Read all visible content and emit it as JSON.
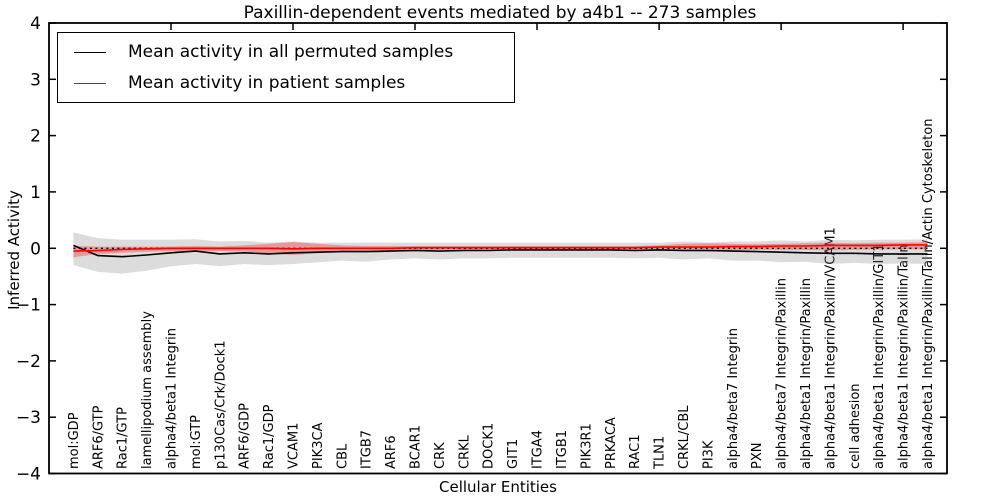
{
  "chart_data": {
    "type": "line",
    "title": "Paxillin-dependent events mediated by a4b1 -- 273 samples",
    "xlabel": "Cellular Entities",
    "ylabel": "Inferred Activity",
    "xlim": [
      0,
      36.8
    ],
    "ylim": [
      -4,
      4
    ],
    "grid": false,
    "legend_position": "upper left",
    "yticks": [
      {
        "value": 4,
        "label": "4"
      },
      {
        "value": 3,
        "label": "3"
      },
      {
        "value": 2,
        "label": "2"
      },
      {
        "value": 1,
        "label": "1"
      },
      {
        "value": 0,
        "label": "0"
      },
      {
        "value": -1,
        "label": "−1"
      },
      {
        "value": -2,
        "label": "−2"
      },
      {
        "value": -3,
        "label": "−3"
      },
      {
        "value": -4,
        "label": "−4"
      }
    ],
    "xtick_marks": [
      5,
      10,
      15,
      20,
      25,
      30,
      35
    ],
    "categories": [
      "mol:GDP",
      "ARF6/GTP",
      "Rac1/GTP",
      "lamellipodium assembly",
      "alpha4/beta1 Integrin",
      "mol:GTP",
      "p130Cas/Crk/Dock1",
      "ARF6/GDP",
      "Rac1/GDP",
      "VCAM1",
      "PIK3CA",
      "CBL",
      "ITGB7",
      "ARF6",
      "BCAR1",
      "CRK",
      "CRKL",
      "DOCK1",
      "GIT1",
      "ITGA4",
      "ITGB1",
      "PIK3R1",
      "PRKACA",
      "RAC1",
      "TLN1",
      "CRKL/CBL",
      "PI3K",
      "alpha4/beta7 Integrin",
      "PXN",
      "alpha4/beta7 Integrin/Paxillin",
      "alpha4/beta1 Integrin/Paxillin",
      "alpha4/beta1 Integrin/Paxillin/VCAM1",
      "cell adhesion",
      "alpha4/beta1 Integrin/Paxillin/GIT1",
      "alpha4/beta1 Integrin/Paxillin/Talin",
      "alpha4/beta1 Integrin/Paxillin/Talin/Actin Cytoskeleton"
    ],
    "zero_line": {
      "value": 0,
      "style": "dotted",
      "color": "#000000"
    },
    "series": [
      {
        "key": "permuted",
        "name": "Mean activity in all permuted samples",
        "color": "#000000",
        "values": [
          0.05,
          -0.13,
          -0.15,
          -0.12,
          -0.08,
          -0.05,
          -0.1,
          -0.08,
          -0.1,
          -0.08,
          -0.07,
          -0.06,
          -0.06,
          -0.05,
          -0.04,
          -0.05,
          -0.04,
          -0.04,
          -0.03,
          -0.03,
          -0.03,
          -0.03,
          -0.03,
          -0.04,
          -0.03,
          -0.04,
          -0.04,
          -0.05,
          -0.06,
          -0.07,
          -0.08,
          -0.09,
          -0.09,
          -0.1,
          -0.1,
          -0.1
        ],
        "band": {
          "color": "#808080",
          "opacity": 0.28,
          "upper": [
            0.28,
            0.18,
            0.15,
            0.15,
            0.15,
            0.16,
            0.12,
            0.13,
            0.1,
            0.12,
            0.1,
            0.1,
            0.1,
            0.1,
            0.1,
            0.1,
            0.1,
            0.1,
            0.1,
            0.1,
            0.1,
            0.1,
            0.1,
            0.1,
            0.1,
            0.12,
            0.1,
            0.12,
            0.12,
            0.14,
            0.12,
            0.15,
            0.14,
            0.15,
            0.15,
            0.16
          ],
          "lower": [
            -0.3,
            -0.42,
            -0.45,
            -0.4,
            -0.32,
            -0.28,
            -0.32,
            -0.28,
            -0.3,
            -0.28,
            -0.25,
            -0.22,
            -0.24,
            -0.2,
            -0.18,
            -0.2,
            -0.18,
            -0.18,
            -0.17,
            -0.17,
            -0.17,
            -0.17,
            -0.17,
            -0.18,
            -0.17,
            -0.2,
            -0.18,
            -0.22,
            -0.22,
            -0.25,
            -0.24,
            -0.28,
            -0.26,
            -0.28,
            -0.27,
            -0.28
          ]
        }
      },
      {
        "key": "patient",
        "name": "Mean activity in patient samples",
        "color": "#ff0000",
        "values": [
          -0.05,
          -0.04,
          -0.02,
          -0.01,
          0.0,
          0.0,
          0.0,
          0.0,
          0.0,
          -0.01,
          0.0,
          0.0,
          0.0,
          0.0,
          0.01,
          0.01,
          0.01,
          0.01,
          0.01,
          0.01,
          0.01,
          0.01,
          0.01,
          0.01,
          0.02,
          0.02,
          0.02,
          0.03,
          0.03,
          0.04,
          0.04,
          0.05,
          0.05,
          0.05,
          0.06,
          0.06
        ],
        "band": {
          "color": "#ff0000",
          "opacity": 0.3,
          "upper": [
            0.04,
            0.03,
            0.03,
            0.03,
            0.03,
            0.04,
            0.03,
            0.05,
            0.08,
            0.11,
            0.08,
            0.05,
            0.04,
            0.04,
            0.04,
            0.04,
            0.04,
            0.04,
            0.04,
            0.04,
            0.04,
            0.04,
            0.04,
            0.04,
            0.05,
            0.08,
            0.09,
            0.08,
            0.07,
            0.08,
            0.09,
            0.1,
            0.09,
            0.1,
            0.1,
            0.11
          ],
          "lower": [
            -0.16,
            -0.1,
            -0.08,
            -0.06,
            -0.05,
            -0.05,
            -0.05,
            -0.06,
            -0.09,
            -0.12,
            -0.09,
            -0.05,
            -0.04,
            -0.04,
            -0.03,
            -0.03,
            -0.03,
            -0.03,
            -0.03,
            -0.03,
            -0.03,
            -0.03,
            -0.03,
            -0.03,
            -0.04,
            -0.05,
            -0.06,
            -0.04,
            -0.03,
            -0.03,
            -0.03,
            -0.04,
            -0.03,
            -0.02,
            -0.02,
            -0.02
          ]
        }
      }
    ]
  }
}
